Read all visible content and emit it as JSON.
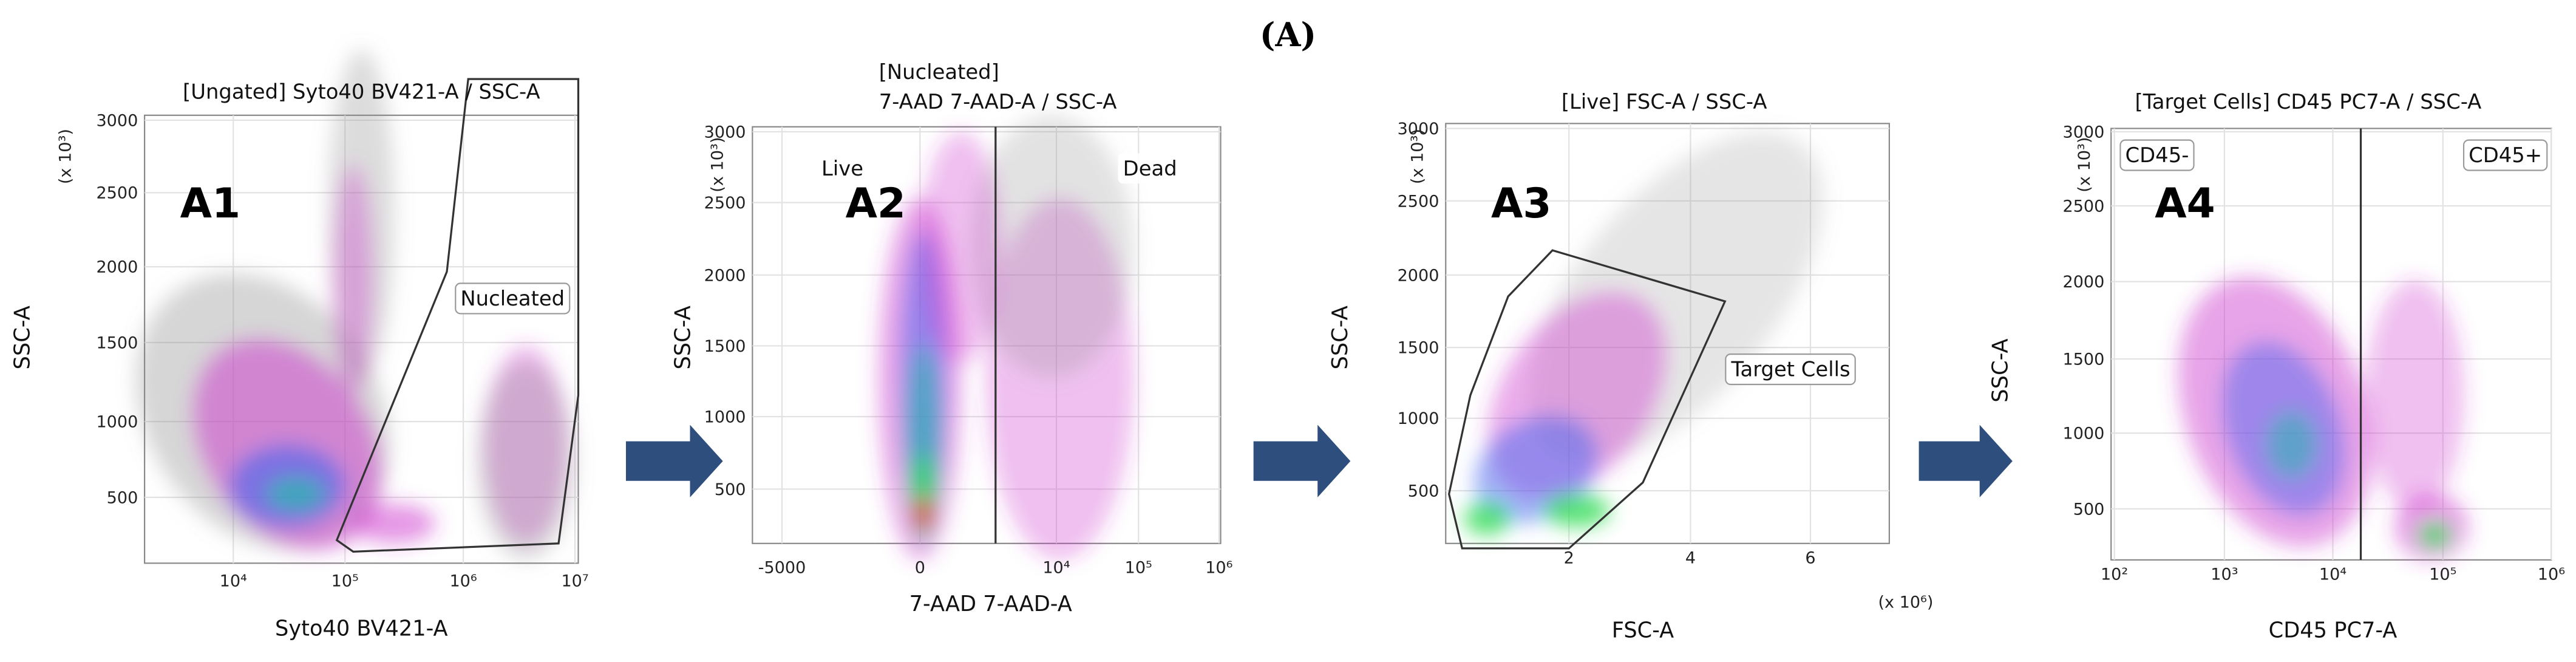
{
  "figure_label": "(A)",
  "panels": [
    {
      "label": "A1",
      "title": [
        "[Ungated] Syto40 BV421-A / SSC-A"
      ],
      "y_label": "SSC-A",
      "y_multiplier": "(x 10³)",
      "x_label": "Syto40 BV421-A",
      "yticks": [
        "3000",
        "2500",
        "2000",
        "1500",
        "1000",
        "500"
      ],
      "xticks": [
        "10⁴",
        "10⁵",
        "10⁶",
        "10⁷"
      ],
      "gates": [
        "Nucleated"
      ]
    },
    {
      "label": "A2",
      "title": [
        "[Nucleated]",
        "7-AAD 7-AAD-A / SSC-A"
      ],
      "y_label": "SSC-A",
      "y_multiplier": "(x 10³)",
      "x_label": "7-AAD 7-AAD-A",
      "yticks": [
        "3000",
        "2500",
        "2000",
        "1500",
        "1000",
        "500"
      ],
      "xticks": [
        "-5000",
        "0",
        "10⁴",
        "10⁵",
        "10⁶"
      ],
      "gates": [
        "Live",
        "Dead"
      ]
    },
    {
      "label": "A3",
      "title": [
        "[Live] FSC-A / SSC-A"
      ],
      "y_label": "SSC-A",
      "y_multiplier": "(x 10³)",
      "x_label": "FSC-A",
      "x_multiplier": "(x 10⁶)",
      "yticks": [
        "3000",
        "2500",
        "2000",
        "1500",
        "1000",
        "500"
      ],
      "xticks": [
        "2",
        "4",
        "6"
      ],
      "gates": [
        "Target Cells"
      ]
    },
    {
      "label": "A4",
      "title": [
        "[Target Cells] CD45 PC7-A / SSC-A"
      ],
      "y_label": "SSC-A",
      "y_multiplier": "(x 10³)",
      "x_label": "CD45 PC7-A",
      "yticks": [
        "3000",
        "2500",
        "2000",
        "1500",
        "1000",
        "500"
      ],
      "xticks": [
        "10²",
        "10³",
        "10⁴",
        "10⁵",
        "10⁶"
      ],
      "gates": [
        "CD45-",
        "CD45+"
      ]
    }
  ]
}
